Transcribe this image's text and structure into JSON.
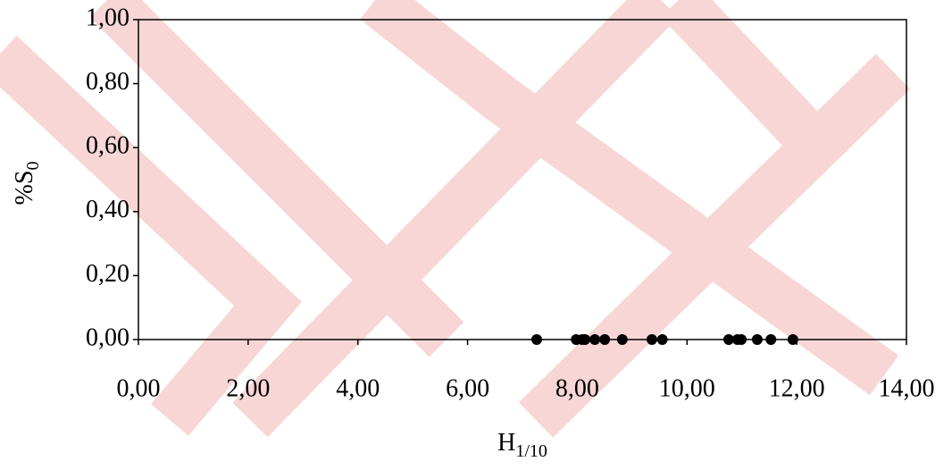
{
  "chart_data": {
    "type": "scatter",
    "xlabel": {
      "main": "H",
      "sub": "1/10"
    },
    "ylabel": {
      "main": "%S",
      "sub": "0"
    },
    "x": [
      7.26,
      7.98,
      8.09,
      8.14,
      8.32,
      8.5,
      8.82,
      9.36,
      9.55,
      10.76,
      10.92,
      10.99,
      11.28,
      11.53,
      11.93
    ],
    "y": [
      0,
      0,
      0,
      0,
      0,
      0,
      0,
      0,
      0,
      0,
      0,
      0,
      0,
      0,
      0
    ],
    "color": "#000000",
    "xlim": [
      0,
      14
    ],
    "xticks": [
      {
        "value": 0,
        "label": "0,00"
      },
      {
        "value": 2,
        "label": "2,00"
      },
      {
        "value": 4,
        "label": "4,00"
      },
      {
        "value": 6,
        "label": "6,00"
      },
      {
        "value": 8,
        "label": "8,00"
      },
      {
        "value": 10,
        "label": "10,00"
      },
      {
        "value": 12,
        "label": "12,00"
      },
      {
        "value": 14,
        "label": "14,00"
      }
    ],
    "ylim": [
      0,
      1
    ],
    "yticks": [
      {
        "value": 0,
        "label": "0,00"
      },
      {
        "value": 0.2,
        "label": "0,20"
      },
      {
        "value": 0.4,
        "label": "0,40"
      },
      {
        "value": 0.6,
        "label": "0,60"
      },
      {
        "value": 0.8,
        "label": "0,80"
      },
      {
        "value": 1,
        "label": "1,00"
      }
    ],
    "grid": false
  }
}
